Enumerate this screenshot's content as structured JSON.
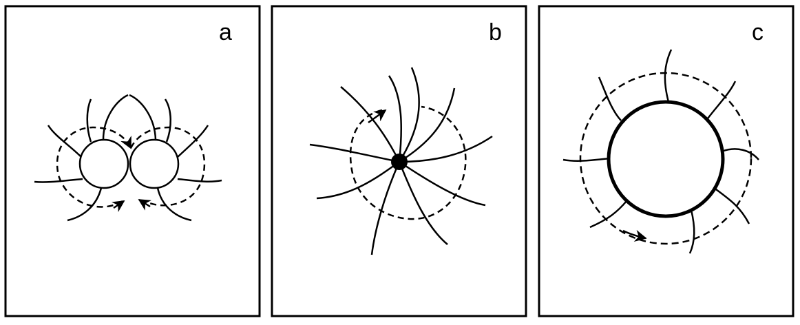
{
  "panels": [
    {
      "id": "a",
      "label": "a"
    },
    {
      "id": "b",
      "label": "b"
    },
    {
      "id": "c",
      "label": "c"
    }
  ],
  "colors": {
    "stroke": "#000000",
    "background": "#ffffff"
  }
}
